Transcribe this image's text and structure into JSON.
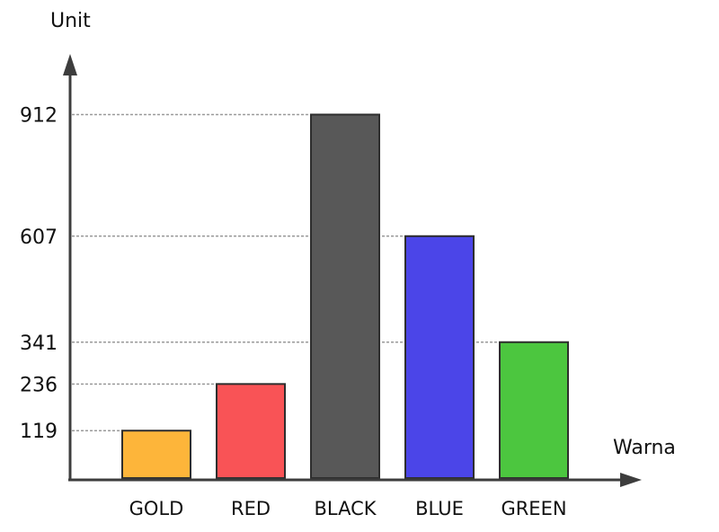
{
  "chart_data": {
    "type": "bar",
    "xlabel": "Warna",
    "ylabel": "Unit",
    "categories": [
      "GOLD",
      "RED",
      "BLACK",
      "BLUE",
      "GREEN"
    ],
    "values": [
      119,
      236,
      912,
      607,
      341
    ],
    "colors": [
      "#FDB53A",
      "#F95356",
      "#585858",
      "#4B45E8",
      "#4CC63F"
    ],
    "yticks": [
      119,
      236,
      341,
      607,
      912
    ],
    "ylim": [
      0,
      1000
    ],
    "grid": "dashed reference lines at bar tops"
  }
}
